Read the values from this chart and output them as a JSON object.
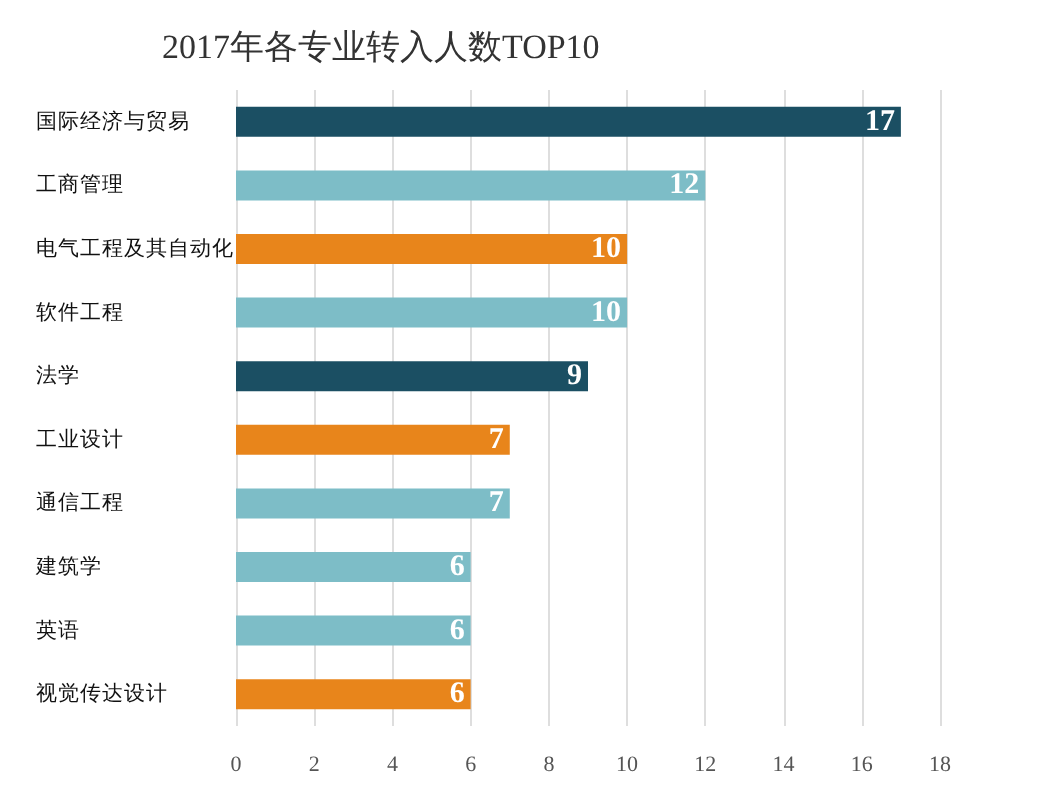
{
  "chart_data": {
    "type": "bar",
    "orientation": "horizontal",
    "title": "2017年各专业转入人数TOP10",
    "categories": [
      "国际经济与贸易",
      "工商管理",
      "电气工程及其自动化",
      "软件工程",
      "法学",
      "工业设计",
      "通信工程",
      "建筑学",
      "英语",
      "视觉传达设计"
    ],
    "values": [
      17,
      12,
      10,
      10,
      9,
      7,
      7,
      6,
      6,
      6
    ],
    "colors": [
      "#1b4f63",
      "#7dbdc7",
      "#e8851b",
      "#7dbdc7",
      "#1b4f63",
      "#e8851b",
      "#7dbdc7",
      "#7dbdc7",
      "#7dbdc7",
      "#e8851b"
    ],
    "xlim": [
      0,
      18
    ],
    "xticks": [
      0,
      2,
      4,
      6,
      8,
      10,
      12,
      14,
      16,
      18
    ],
    "grid": "x",
    "data_labels": true
  }
}
